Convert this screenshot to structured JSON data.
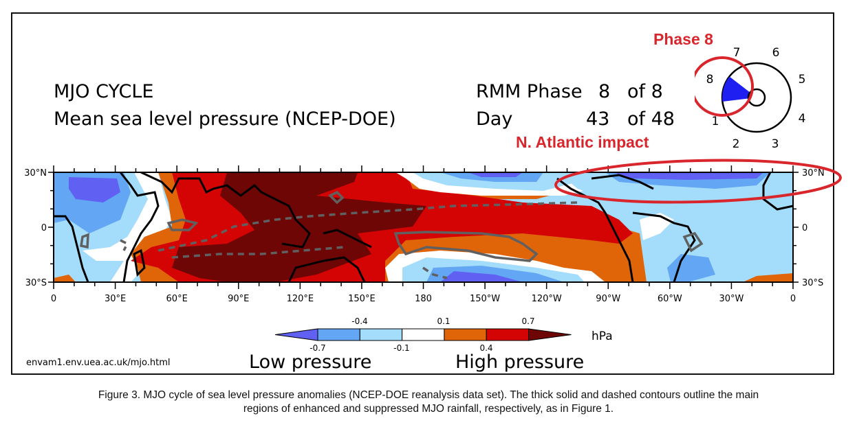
{
  "header": {
    "title_line1": "MJO CYCLE",
    "title_line2": "Mean sea level pressure (NCEP-DOE)",
    "phase_label": "RMM Phase",
    "phase_value": "8",
    "phase_of": "of 8",
    "day_label": "Day",
    "day_value": "43",
    "day_of": "of 48"
  },
  "phase_diagram": {
    "labels": [
      "1",
      "2",
      "3",
      "4",
      "5",
      "6",
      "7",
      "8"
    ],
    "active_phase": 8,
    "sector_color": "#1f1ff2"
  },
  "annotations": {
    "phase_callout": "Phase 8",
    "region_callout": "N. Atlantic impact",
    "callout_color": "#d8262c"
  },
  "map": {
    "lat_labels": [
      "30°N",
      "0",
      "30°S"
    ],
    "lon_labels": [
      "0",
      "30°E",
      "60°E",
      "90°E",
      "120°E",
      "150°E",
      "180",
      "150°W",
      "120°W",
      "90°W",
      "60°W",
      "30°W",
      "0"
    ],
    "levels": [
      -0.7,
      -0.4,
      -0.1,
      0.1,
      0.4,
      0.7
    ],
    "colors": [
      "#6060f2",
      "#62a6f4",
      "#a4dcfc",
      "#ffffff",
      "#e06408",
      "#d40404",
      "#6e0606"
    ]
  },
  "colorbar": {
    "top_labels": [
      "-0.4",
      "0.1",
      "0.7"
    ],
    "bottom_labels": [
      "-0.7",
      "-0.1",
      "0.4"
    ],
    "unit": "hPa",
    "low_label": "Low pressure",
    "high_label": "High pressure"
  },
  "footer": {
    "url": "envam1.env.uea.ac.uk/mjo.html"
  },
  "caption": {
    "line1": "Figure 3. MJO cycle of sea level pressure anomalies (NCEP-DOE reanalysis data set). The thick solid and dashed contours outline the main",
    "line2": "regions of enhanced and suppressed MJO rainfall, respectively, as in Figure 1."
  }
}
